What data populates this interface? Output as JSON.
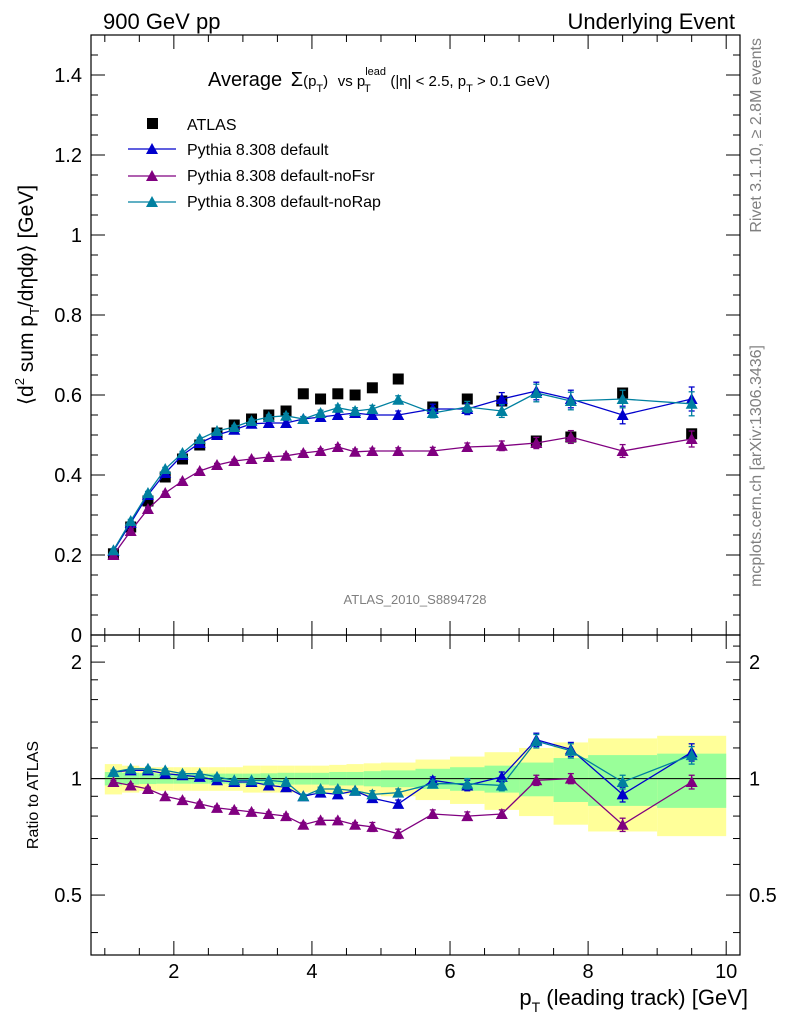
{
  "header": {
    "left": "900 GeV pp",
    "right": "Underlying Event"
  },
  "side_labels": {
    "rivet": "Rivet 3.1.10, ≥ 2.8M events",
    "mcplots": "mcplots.cern.ch [arXiv:1306.3436]"
  },
  "colors": {
    "atlas": "#000000",
    "default": "#0000cc",
    "noFsr": "#800080",
    "noRap": "#0080a0",
    "band_inner": "#99ff99",
    "band_outer": "#ffff99"
  },
  "chart_data": [
    {
      "type": "scatter",
      "title_parts": {
        "average": "Average",
        "sigma": "Σ",
        "sigma_arg": "(p",
        "sigma_sub": "T",
        "sigma_close": ")",
        "vs": "vs p",
        "lead_sup": "lead",
        "lead_sub": "T",
        "cut1": "(|η| < 2.5, p",
        "cut1_sub": "T",
        "cut2": " > 0.1 GeV)"
      },
      "ylabel_parts": {
        "a": "⟨d",
        "sup": "2",
        "b": " sum p",
        "sub": "T",
        "c": "/dηdφ⟩ [GeV]"
      },
      "watermark": "ATLAS_2010_S8894728",
      "xlim": [
        0.8,
        10.2
      ],
      "ylim": [
        0,
        1.5
      ],
      "yticks": [
        {
          "v": 0,
          "label": "0"
        },
        {
          "v": 0.2,
          "label": "0.2"
        },
        {
          "v": 0.4,
          "label": "0.4"
        },
        {
          "v": 0.6,
          "label": "0.6"
        },
        {
          "v": 0.8,
          "label": "0.8"
        },
        {
          "v": 1,
          "label": "1"
        },
        {
          "v": 1.2,
          "label": "1.2"
        },
        {
          "v": 1.4,
          "label": "1.4"
        }
      ],
      "legend": {
        "position": "top-left"
      },
      "x": [
        1.125,
        1.375,
        1.625,
        1.875,
        2.125,
        2.375,
        2.625,
        2.875,
        3.125,
        3.375,
        3.625,
        3.875,
        4.125,
        4.375,
        4.625,
        4.875,
        5.25,
        5.75,
        6.25,
        6.75,
        7.25,
        7.75,
        8.5,
        9.5
      ],
      "series": [
        {
          "name": "ATLAS",
          "key": "atlas",
          "marker": "square",
          "values": [
            0.203,
            0.27,
            0.335,
            0.395,
            0.44,
            0.475,
            0.505,
            0.525,
            0.54,
            0.55,
            0.56,
            0.603,
            0.59,
            0.603,
            0.6,
            0.618,
            0.64,
            0.57,
            0.59,
            0.585,
            0.485,
            0.495,
            0.605,
            0.503
          ]
        },
        {
          "name": "Pythia 8.308 default",
          "key": "default",
          "marker": "triangle",
          "values": [
            0.21,
            0.28,
            0.35,
            0.405,
            0.45,
            0.48,
            0.5,
            0.513,
            0.528,
            0.53,
            0.53,
            0.54,
            0.545,
            0.55,
            0.555,
            0.55,
            0.55,
            0.565,
            0.565,
            0.59,
            0.61,
            0.59,
            0.55,
            0.59
          ],
          "errors": [
            0.004,
            0.004,
            0.004,
            0.004,
            0.004,
            0.004,
            0.004,
            0.004,
            0.005,
            0.005,
            0.006,
            0.006,
            0.007,
            0.007,
            0.008,
            0.009,
            0.01,
            0.012,
            0.014,
            0.016,
            0.022,
            0.022,
            0.022,
            0.03
          ]
        },
        {
          "name": "Pythia 8.308 default-noFsr",
          "key": "noFsr",
          "marker": "triangle",
          "values": [
            0.2,
            0.26,
            0.315,
            0.355,
            0.385,
            0.41,
            0.425,
            0.435,
            0.44,
            0.445,
            0.448,
            0.455,
            0.46,
            0.47,
            0.458,
            0.46,
            0.46,
            0.46,
            0.47,
            0.473,
            0.48,
            0.495,
            0.46,
            0.49
          ],
          "errors": [
            0.004,
            0.004,
            0.004,
            0.004,
            0.004,
            0.004,
            0.004,
            0.004,
            0.004,
            0.005,
            0.005,
            0.005,
            0.006,
            0.006,
            0.007,
            0.007,
            0.008,
            0.009,
            0.01,
            0.012,
            0.014,
            0.016,
            0.016,
            0.02
          ]
        },
        {
          "name": "Pythia 8.308 default-noRap",
          "key": "noRap",
          "marker": "triangle",
          "values": [
            0.212,
            0.285,
            0.355,
            0.415,
            0.455,
            0.49,
            0.51,
            0.52,
            0.535,
            0.545,
            0.548,
            0.54,
            0.555,
            0.568,
            0.56,
            0.565,
            0.588,
            0.555,
            0.57,
            0.56,
            0.605,
            0.585,
            0.59,
            0.578
          ],
          "errors": [
            0.004,
            0.004,
            0.004,
            0.004,
            0.004,
            0.004,
            0.004,
            0.004,
            0.005,
            0.005,
            0.006,
            0.006,
            0.007,
            0.007,
            0.008,
            0.009,
            0.01,
            0.012,
            0.014,
            0.016,
            0.022,
            0.022,
            0.022,
            0.03
          ]
        }
      ]
    },
    {
      "type": "scatter",
      "ylabel": "Ratio to ATLAS",
      "xlabel_parts": {
        "a": "p",
        "sub": "T",
        "b": " (leading track) [GeV]"
      },
      "xlim": [
        0.8,
        10.2
      ],
      "ylim": [
        0.35,
        2.35
      ],
      "xticks": [
        {
          "v": 2,
          "label": "2"
        },
        {
          "v": 4,
          "label": "4"
        },
        {
          "v": 6,
          "label": "6"
        },
        {
          "v": 8,
          "label": "8"
        },
        {
          "v": 10,
          "label": "10"
        }
      ],
      "yticks": [
        {
          "v": 0.5,
          "label": "0.5"
        },
        {
          "v": 1,
          "label": "1"
        },
        {
          "v": 2,
          "label": "2"
        }
      ],
      "x_edges": [
        1.0,
        1.25,
        1.5,
        1.75,
        2.0,
        2.25,
        2.5,
        2.75,
        3.0,
        3.25,
        3.5,
        3.75,
        4.0,
        4.25,
        4.5,
        4.75,
        5.0,
        5.5,
        6.0,
        6.5,
        7.0,
        7.5,
        8.0,
        9.0,
        10.0
      ],
      "band_inner": [
        0.04,
        0.035,
        0.032,
        0.03,
        0.03,
        0.03,
        0.03,
        0.03,
        0.03,
        0.032,
        0.035,
        0.035,
        0.035,
        0.04,
        0.04,
        0.045,
        0.05,
        0.06,
        0.07,
        0.08,
        0.1,
        0.13,
        0.15,
        0.16
      ],
      "band_outer": [
        0.09,
        0.08,
        0.07,
        0.07,
        0.07,
        0.07,
        0.07,
        0.07,
        0.08,
        0.08,
        0.08,
        0.08,
        0.08,
        0.085,
        0.09,
        0.095,
        0.1,
        0.12,
        0.14,
        0.17,
        0.2,
        0.24,
        0.27,
        0.29
      ],
      "series": [
        {
          "name": "Pythia 8.308 default",
          "key": "default",
          "values": [
            1.04,
            1.05,
            1.05,
            1.03,
            1.02,
            1.01,
            0.99,
            0.98,
            0.98,
            0.96,
            0.95,
            0.9,
            0.92,
            0.91,
            0.93,
            0.89,
            0.86,
            0.99,
            0.96,
            1.01,
            1.26,
            1.19,
            0.91,
            1.17
          ],
          "errors": [
            0.01,
            0.01,
            0.01,
            0.01,
            0.01,
            0.01,
            0.01,
            0.01,
            0.01,
            0.01,
            0.01,
            0.01,
            0.01,
            0.01,
            0.01,
            0.02,
            0.02,
            0.02,
            0.03,
            0.03,
            0.05,
            0.05,
            0.04,
            0.06
          ]
        },
        {
          "name": "Pythia 8.308 default-noFsr",
          "key": "noFsr",
          "values": [
            0.98,
            0.96,
            0.94,
            0.9,
            0.88,
            0.86,
            0.84,
            0.83,
            0.82,
            0.81,
            0.8,
            0.76,
            0.78,
            0.78,
            0.76,
            0.75,
            0.72,
            0.81,
            0.8,
            0.81,
            0.99,
            1.0,
            0.76,
            0.98
          ],
          "errors": [
            0.01,
            0.01,
            0.01,
            0.01,
            0.01,
            0.01,
            0.01,
            0.01,
            0.01,
            0.01,
            0.01,
            0.01,
            0.01,
            0.01,
            0.01,
            0.02,
            0.02,
            0.02,
            0.02,
            0.02,
            0.03,
            0.03,
            0.03,
            0.04
          ]
        },
        {
          "name": "Pythia 8.308 default-noRap",
          "key": "noRap",
          "values": [
            1.04,
            1.06,
            1.06,
            1.05,
            1.03,
            1.03,
            1.01,
            0.99,
            0.99,
            0.99,
            0.98,
            0.9,
            0.94,
            0.94,
            0.93,
            0.91,
            0.92,
            0.97,
            0.97,
            0.96,
            1.25,
            1.18,
            0.98,
            1.15
          ],
          "errors": [
            0.01,
            0.01,
            0.01,
            0.01,
            0.01,
            0.01,
            0.01,
            0.01,
            0.01,
            0.01,
            0.01,
            0.01,
            0.01,
            0.01,
            0.01,
            0.02,
            0.02,
            0.02,
            0.03,
            0.03,
            0.05,
            0.05,
            0.04,
            0.06
          ]
        }
      ]
    }
  ]
}
